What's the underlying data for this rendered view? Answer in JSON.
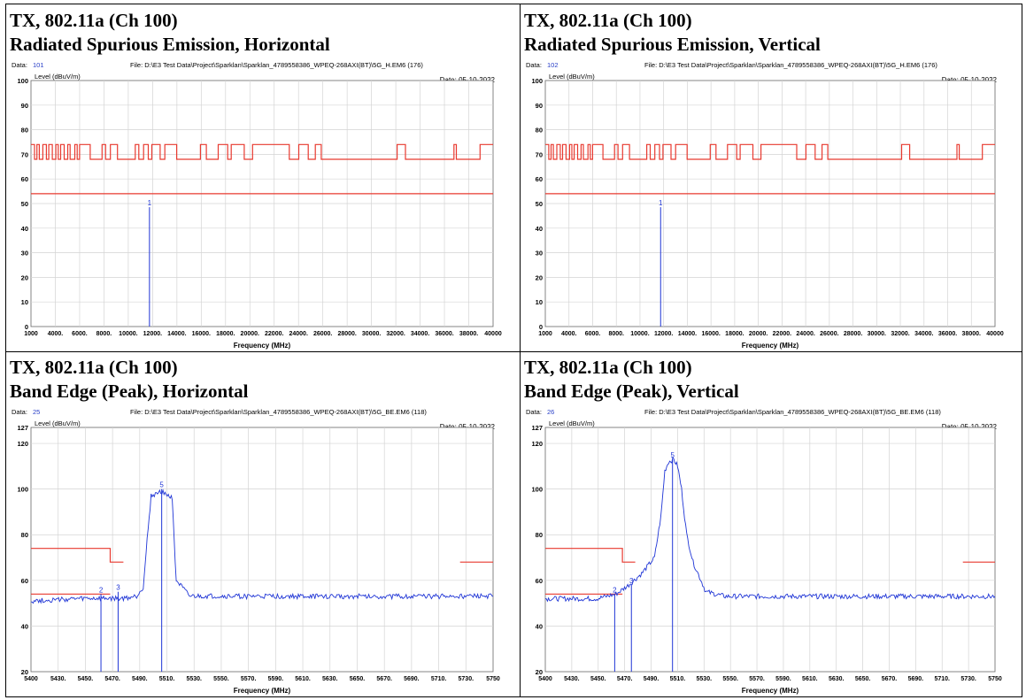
{
  "panels": [
    {
      "id": "p1",
      "caption_line1": "TX, 802.11a (Ch 100)",
      "caption_line2": "Radiated Spurious Emission, Horizontal",
      "data_label": "Data:",
      "data_no": "101",
      "file": "File: D:\\E3 Test Data\\Project\\Sparklan\\Sparklan_4789558386_WPEQ-268AXI(BT)\\5G_H.EM6 (176)",
      "date": "Date: 05-10-2022"
    },
    {
      "id": "p2",
      "caption_line1": "TX, 802.11a (Ch 100)",
      "caption_line2": "Radiated Spurious Emission, Vertical",
      "data_label": "Data:",
      "data_no": "102",
      "file": "File: D:\\E3 Test Data\\Project\\Sparklan\\Sparklan_4789558386_WPEQ-268AXI(BT)\\5G_H.EM6 (176)",
      "date": "Date: 05-10-2022"
    },
    {
      "id": "p3",
      "caption_line1": "TX, 802.11a (Ch 100)",
      "caption_line2": "Band Edge (Peak), Horizontal",
      "data_label": "Data:",
      "data_no": "25",
      "file": "File: D:\\E3 Test Data\\Project\\Sparklan\\Sparklan_4789558386_WPEQ-268AXI(BT)\\5G_BE.EM6 (118)",
      "date": "Date: 05-10-2022"
    },
    {
      "id": "p4",
      "caption_line1": "TX, 802.11a (Ch 100)",
      "caption_line2": "Band Edge (Peak), Vertical",
      "data_label": "Data:",
      "data_no": "26",
      "file": "File: D:\\E3 Test Data\\Project\\Sparklan\\Sparklan_4789558386_WPEQ-268AXI(BT)\\5G_BE.EM6 (118)",
      "date": "Date: 05-10-2022"
    }
  ],
  "colors": {
    "limit": "#e8392f",
    "trace": "#1f35d6",
    "grid": "#d4d4d4",
    "data_no": "#2a40c8"
  },
  "chart_data": [
    {
      "type": "line",
      "ylabel": "Level (dBuV/m)",
      "xlabel": "Frequency (MHz)",
      "xlim": [
        1000,
        40000
      ],
      "ylim": [
        0,
        100
      ],
      "x_ticks": [
        "1000",
        "4000.",
        "6000.",
        "8000.",
        "10000.",
        "12000.",
        "14000.",
        "16000.",
        "18000.",
        "20000.",
        "22000.",
        "24000.",
        "26000.",
        "28000.",
        "30000.",
        "32000.",
        "34000.",
        "36000.",
        "38000.",
        "40000"
      ],
      "y_ticks": [
        "0",
        "10",
        "20",
        "30",
        "40",
        "50",
        "60",
        "70",
        "80",
        "90",
        "100"
      ],
      "series": [
        {
          "role": "limit-average",
          "x": [
            1000,
            40000
          ],
          "y": [
            54,
            54
          ]
        },
        {
          "role": "limit-peak",
          "x": [
            1000,
            1300,
            1300,
            1500,
            1500,
            1700,
            1700,
            2000,
            2000,
            2300,
            2300,
            2500,
            2500,
            2800,
            2800,
            3100,
            3100,
            3300,
            3300,
            3500,
            3500,
            3800,
            3800,
            4100,
            4100,
            4300,
            4300,
            4700,
            4700,
            4900,
            4900,
            5100,
            5100,
            6000,
            6000,
            7000,
            7000,
            7300,
            7300,
            7700,
            7700,
            8300,
            8300,
            9800,
            9800,
            10100,
            10100,
            10500,
            10500,
            10900,
            10900,
            11200,
            11200,
            11900,
            11900,
            12300,
            12300,
            13300,
            13300,
            15300,
            15300,
            15800,
            15800,
            16800,
            16800,
            17600,
            17600,
            17900,
            17900,
            19000,
            19000,
            19700,
            19700,
            22800,
            22800,
            23600,
            23600,
            24400,
            24400,
            25000,
            25000,
            25500,
            25500,
            31900,
            31900,
            32600,
            32600,
            36700,
            36700,
            36900,
            36900,
            38900,
            38900,
            40000
          ],
          "y": [
            74,
            74,
            68,
            68,
            74,
            74,
            68,
            68,
            74,
            74,
            68,
            68,
            74,
            74,
            68,
            68,
            74,
            74,
            68,
            68,
            74,
            74,
            68,
            68,
            74,
            74,
            68,
            68,
            74,
            74,
            68,
            68,
            74,
            74,
            68,
            68,
            74,
            74,
            68,
            68,
            74,
            74,
            68,
            68,
            74,
            74,
            68,
            68,
            74,
            74,
            68,
            68,
            74,
            74,
            68,
            68,
            74,
            74,
            68,
            68,
            74,
            74,
            68,
            68,
            74,
            74,
            68,
            68,
            74,
            74,
            68,
            68,
            74,
            74,
            68,
            68,
            74,
            74,
            68,
            68,
            74,
            74,
            68,
            68,
            74,
            74,
            68,
            68,
            74,
            74,
            68,
            68,
            74,
            74
          ]
        }
      ],
      "markers": [
        {
          "label": "1",
          "x": 11000,
          "y": 48.5
        }
      ]
    },
    {
      "type": "line",
      "ylabel": "Level (dBuV/m)",
      "xlabel": "Frequency (MHz)",
      "xlim": [
        1000,
        40000
      ],
      "ylim": [
        0,
        100
      ],
      "x_ticks": [
        "1000",
        "4000.",
        "6000.",
        "8000.",
        "10000.",
        "12000.",
        "14000.",
        "16000.",
        "18000.",
        "20000.",
        "22000.",
        "24000.",
        "26000.",
        "28000.",
        "30000.",
        "32000.",
        "34000.",
        "36000.",
        "38000.",
        "40000"
      ],
      "y_ticks": [
        "0",
        "10",
        "20",
        "30",
        "40",
        "50",
        "60",
        "70",
        "80",
        "90",
        "100"
      ],
      "series": [
        {
          "role": "limit-average",
          "x": [
            1000,
            40000
          ],
          "y": [
            54,
            54
          ]
        },
        {
          "role": "limit-peak",
          "x": [
            1000,
            1300,
            1300,
            1500,
            1500,
            1700,
            1700,
            2000,
            2000,
            2300,
            2300,
            2500,
            2500,
            2800,
            2800,
            3100,
            3100,
            3300,
            3300,
            3500,
            3500,
            3800,
            3800,
            4100,
            4100,
            4300,
            4300,
            4700,
            4700,
            4900,
            4900,
            5100,
            5100,
            6000,
            6000,
            7000,
            7000,
            7300,
            7300,
            7700,
            7700,
            8300,
            8300,
            9800,
            9800,
            10100,
            10100,
            10500,
            10500,
            10900,
            10900,
            11200,
            11200,
            11900,
            11900,
            12300,
            12300,
            13300,
            13300,
            15300,
            15300,
            15800,
            15800,
            16800,
            16800,
            17600,
            17600,
            17900,
            17900,
            19000,
            19000,
            19700,
            19700,
            22800,
            22800,
            23600,
            23600,
            24400,
            24400,
            25000,
            25000,
            25500,
            25500,
            31900,
            31900,
            32600,
            32600,
            36700,
            36700,
            36900,
            36900,
            38900,
            38900,
            40000
          ],
          "y": [
            74,
            74,
            68,
            68,
            74,
            74,
            68,
            68,
            74,
            74,
            68,
            68,
            74,
            74,
            68,
            68,
            74,
            74,
            68,
            68,
            74,
            74,
            68,
            68,
            74,
            74,
            68,
            68,
            74,
            74,
            68,
            68,
            74,
            74,
            68,
            68,
            74,
            74,
            68,
            68,
            74,
            74,
            68,
            68,
            74,
            74,
            68,
            68,
            74,
            74,
            68,
            68,
            74,
            74,
            68,
            68,
            74,
            74,
            68,
            68,
            74,
            74,
            68,
            68,
            74,
            74,
            68,
            68,
            74,
            74,
            68,
            68,
            74,
            74,
            68,
            68,
            74,
            74,
            68,
            68,
            74,
            74,
            68,
            68,
            74,
            74,
            68,
            68,
            74,
            74,
            68,
            68,
            74,
            74
          ]
        }
      ],
      "markers": [
        {
          "label": "1",
          "x": 11000,
          "y": 48.5
        }
      ]
    },
    {
      "type": "line",
      "ylabel": "Level (dBuV/m)",
      "xlabel": "Frequency (MHz)",
      "xlim": [
        5400,
        5750
      ],
      "ylim": [
        20,
        127
      ],
      "x_ticks": [
        "5400",
        "5430.",
        "5450.",
        "5470.",
        "5490.",
        "5510.",
        "5530.",
        "5550.",
        "5570.",
        "5590.",
        "5610.",
        "5630.",
        "5650.",
        "5670.",
        "5690.",
        "5710.",
        "5730.",
        "5750"
      ],
      "y_ticks": [
        "20",
        "40",
        "60",
        "80",
        "100",
        "120",
        "127"
      ],
      "series": [
        {
          "role": "limit-peak",
          "x": [
            5400,
            5460,
            5460,
            5470
          ],
          "y": [
            74,
            74,
            68,
            68
          ]
        },
        {
          "role": "limit-peak-upper",
          "x": [
            5725,
            5750
          ],
          "y": [
            68,
            68
          ]
        },
        {
          "role": "limit-average",
          "x": [
            5400,
            5460
          ],
          "y": [
            54,
            54
          ]
        },
        {
          "role": "trace",
          "x": [
            5400,
            5440,
            5460,
            5470,
            5480,
            5485,
            5488,
            5491,
            5495,
            5500,
            5504,
            5507,
            5510,
            5520,
            5600,
            5700,
            5750
          ],
          "y": [
            51,
            52,
            52,
            52,
            53,
            57,
            78,
            97,
            98,
            99,
            97,
            96,
            60,
            53,
            53,
            53,
            53
          ]
        }
      ],
      "markers": [
        {
          "label": "2",
          "x": 5453,
          "y": 54
        },
        {
          "label": "3",
          "x": 5466,
          "y": 55
        },
        {
          "label": "5",
          "x": 5499,
          "y": 100
        }
      ]
    },
    {
      "type": "line",
      "ylabel": "Level (dBuV/m)",
      "xlabel": "Frequency (MHz)",
      "xlim": [
        5400,
        5750
      ],
      "ylim": [
        20,
        127
      ],
      "x_ticks": [
        "5400",
        "5430.",
        "5450.",
        "5470.",
        "5490.",
        "5510.",
        "5530.",
        "5550.",
        "5570.",
        "5590.",
        "5610.",
        "5630.",
        "5650.",
        "5670.",
        "5690.",
        "5710.",
        "5730.",
        "5750"
      ],
      "y_ticks": [
        "20",
        "40",
        "60",
        "80",
        "100",
        "120",
        "127"
      ],
      "series": [
        {
          "role": "limit-peak",
          "x": [
            5400,
            5460,
            5460,
            5470
          ],
          "y": [
            74,
            74,
            68,
            68
          ]
        },
        {
          "role": "limit-peak-upper",
          "x": [
            5725,
            5750
          ],
          "y": [
            68,
            68
          ]
        },
        {
          "role": "limit-average",
          "x": [
            5400,
            5460
          ],
          "y": [
            54,
            54
          ]
        },
        {
          "role": "trace",
          "x": [
            5400,
            5440,
            5455,
            5465,
            5475,
            5485,
            5490,
            5493,
            5496,
            5500,
            5503,
            5506,
            5510,
            5515,
            5525,
            5540,
            5600,
            5700,
            5750
          ],
          "y": [
            52,
            52,
            54,
            58,
            63,
            70,
            88,
            108,
            112,
            113,
            110,
            100,
            80,
            68,
            55,
            53,
            53,
            53,
            53
          ]
        }
      ],
      "markers": [
        {
          "label": "2",
          "x": 5454,
          "y": 54
        },
        {
          "label": "3",
          "x": 5467,
          "y": 58
        },
        {
          "label": "5",
          "x": 5499,
          "y": 113
        }
      ]
    }
  ]
}
